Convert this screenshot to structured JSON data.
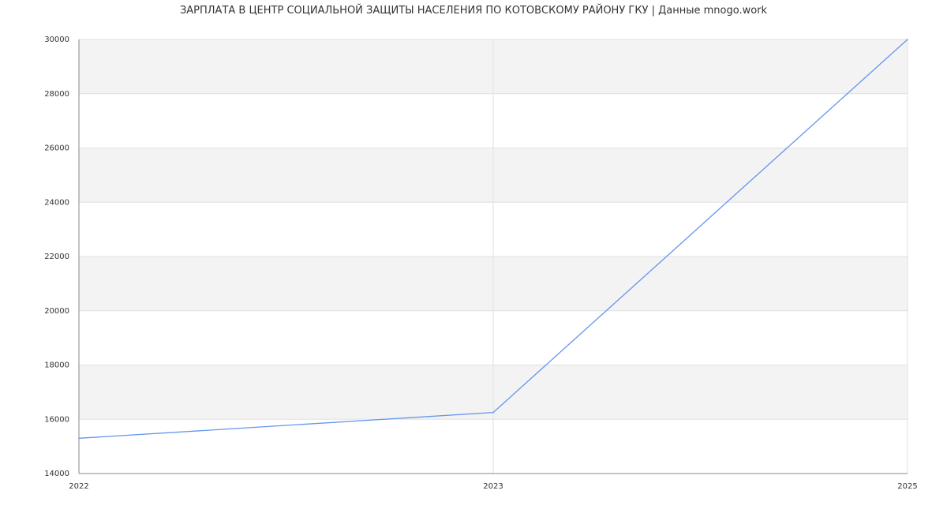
{
  "chart_data": {
    "type": "line",
    "title": "ЗАРПЛАТА В ЦЕНТР СОЦИАЛЬНОЙ ЗАЩИТЫ НАСЕЛЕНИЯ ПО КОТОВСКОМУ РАЙОНУ ГКУ | Данные mnogo.work",
    "categories": [
      "2022",
      "2023",
      "2025"
    ],
    "series": [
      {
        "values": [
          15300,
          16250,
          30000
        ],
        "color": "#6495ed"
      }
    ],
    "ylim": [
      14000,
      30000
    ],
    "yticks": [
      14000,
      16000,
      18000,
      20000,
      22000,
      24000,
      26000,
      28000,
      30000
    ],
    "grid": true,
    "band_color": "#f3f3f3",
    "xlabel": "",
    "ylabel": ""
  }
}
